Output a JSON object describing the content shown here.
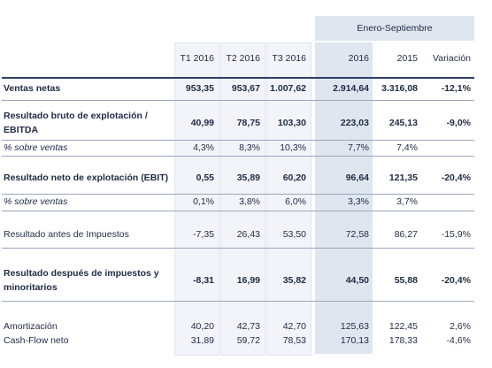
{
  "header": {
    "group": "Enero-Septiembre",
    "columns": [
      "T1 2016",
      "T2 2016",
      "T3 2016",
      "2016",
      "2015",
      "Variación"
    ]
  },
  "rows": [
    {
      "label": "Ventas netas",
      "values": [
        "953,35",
        "953,67",
        "1.007,62",
        "2.914,64",
        "3.316,08",
        "-12,1%"
      ]
    },
    {
      "label": "Resultado bruto de explotación / EBITDA",
      "values": [
        "40,99",
        "78,75",
        "103,30",
        "223,03",
        "245,13",
        "-9,0%"
      ]
    },
    {
      "label": "% sobre ventas",
      "values": [
        "4,3%",
        "8,3%",
        "10,3%",
        "7,7%",
        "7,4%",
        null
      ]
    },
    {
      "label": "Resultado neto de explotación (EBIT)",
      "values": [
        "0,55",
        "35,89",
        "60,20",
        "96,64",
        "121,35",
        "-20,4%"
      ]
    },
    {
      "label": "% sobre ventas",
      "values": [
        "0,1%",
        "3,8%",
        "6,0%",
        "3,3%",
        "3,7%",
        null
      ]
    },
    {
      "label": "Resultado antes de Impuestos",
      "values": [
        "-7,35",
        "26,43",
        "53,50",
        "72,58",
        "86,27",
        "-15,9%"
      ]
    },
    {
      "label": "Resultado después de impuestos y minoritarios",
      "values": [
        "-8,31",
        "16,99",
        "35,82",
        "44,50",
        "55,88",
        "-20,4%"
      ]
    },
    {
      "label": "Amortización",
      "values": [
        "40,20",
        "42,73",
        "42,70",
        "125,63",
        "122,45",
        "2,6%"
      ]
    },
    {
      "label": "Cash-Flow neto",
      "values": [
        "31,89",
        "59,72",
        "78,53",
        "170,13",
        "178,33",
        "-4,6%"
      ]
    }
  ]
}
